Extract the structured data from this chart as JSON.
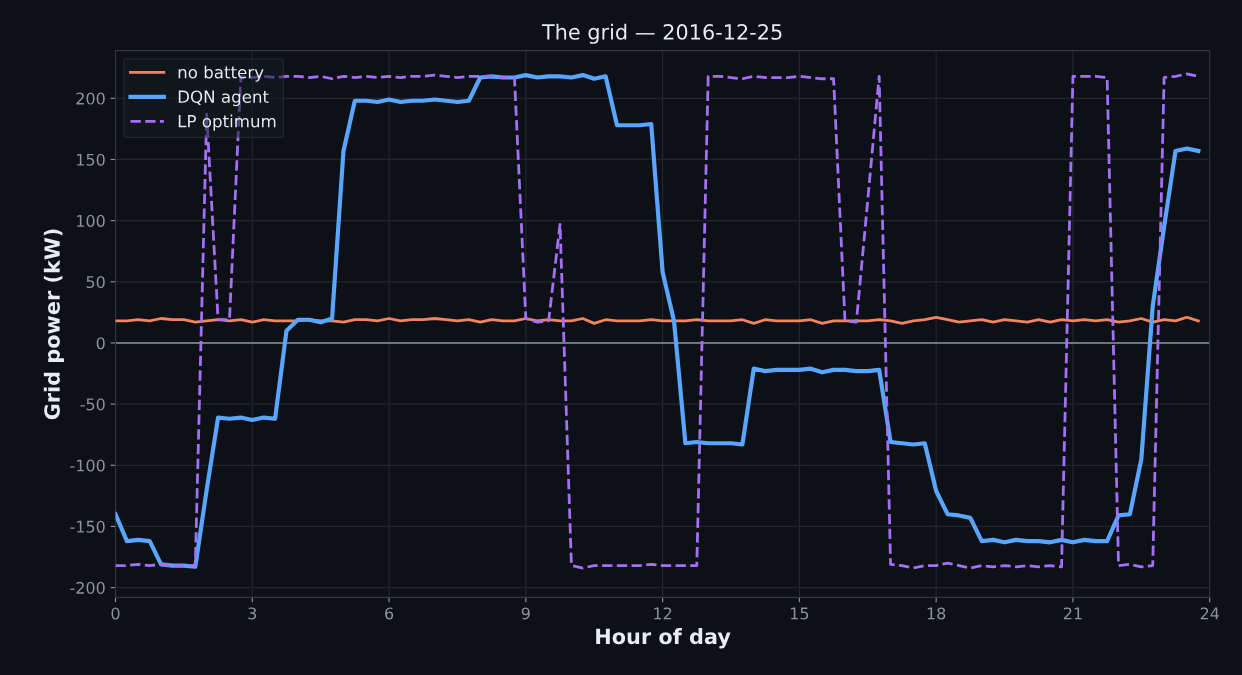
{
  "chart_data": {
    "type": "line",
    "title": "The grid — 2016-12-25",
    "xlabel": "Hour of day",
    "ylabel": "Grid power (kW)",
    "x": [
      0,
      0.25,
      0.5,
      0.75,
      1,
      1.25,
      1.5,
      1.75,
      2,
      2.25,
      2.5,
      2.75,
      3,
      3.25,
      3.5,
      3.75,
      4,
      4.25,
      4.5,
      4.75,
      5,
      5.25,
      5.5,
      5.75,
      6,
      6.25,
      6.5,
      6.75,
      7,
      7.25,
      7.5,
      7.75,
      8,
      8.25,
      8.5,
      8.75,
      9,
      9.25,
      9.5,
      9.75,
      10,
      10.25,
      10.5,
      10.75,
      11,
      11.25,
      11.5,
      11.75,
      12,
      12.25,
      12.5,
      12.75,
      13,
      13.25,
      13.5,
      13.75,
      14,
      14.25,
      14.5,
      14.75,
      15,
      15.25,
      15.5,
      15.75,
      16,
      16.25,
      16.5,
      16.75,
      17,
      17.25,
      17.5,
      17.75,
      18,
      18.25,
      18.5,
      18.75,
      19,
      19.25,
      19.5,
      19.75,
      20,
      20.25,
      20.5,
      20.75,
      21,
      21.25,
      21.5,
      21.75,
      22,
      22.25,
      22.5,
      22.75,
      23,
      23.25,
      23.5,
      23.75
    ],
    "series": [
      {
        "name": "no battery",
        "color": "#f4845f",
        "line_style": "solid",
        "values": [
          18,
          18,
          19,
          18,
          20,
          19,
          19,
          17,
          18,
          19,
          18,
          19,
          17,
          19,
          18,
          18,
          18,
          19,
          18,
          18,
          17,
          19,
          19,
          18,
          20,
          18,
          19,
          19,
          20,
          19,
          18,
          19,
          17,
          19,
          18,
          18,
          20,
          18,
          19,
          18,
          18,
          20,
          16,
          19,
          18,
          18,
          18,
          19,
          18,
          18,
          18,
          19,
          18,
          18,
          18,
          19,
          16,
          19,
          18,
          18,
          18,
          19,
          16,
          18,
          18,
          18,
          18,
          19,
          18,
          16,
          18,
          19,
          21,
          19,
          17,
          18,
          19,
          17,
          19,
          18,
          17,
          19,
          17,
          19,
          18,
          19,
          18,
          19,
          17,
          18,
          20,
          17,
          19,
          18,
          21,
          18
        ]
      },
      {
        "name": "DQN agent",
        "color": "#58a6ff",
        "line_style": "solid",
        "values": [
          -140,
          -162,
          -161,
          -162,
          -181,
          -182,
          -182,
          -183,
          -120,
          -61,
          -62,
          -61,
          -63,
          -61,
          -62,
          10,
          19,
          19,
          17,
          20,
          157,
          198,
          198,
          197,
          199,
          197,
          198,
          198,
          199,
          198,
          197,
          198,
          217,
          218,
          217,
          217,
          219,
          217,
          218,
          218,
          217,
          219,
          216,
          218,
          178,
          178,
          178,
          179,
          58,
          18,
          -82,
          -81,
          -82,
          -82,
          -82,
          -83,
          -21,
          -23,
          -22,
          -22,
          -22,
          -21,
          -24,
          -22,
          -22,
          -23,
          -23,
          -22,
          -81,
          -82,
          -83,
          -82,
          -121,
          -140,
          -141,
          -143,
          -162,
          -161,
          -163,
          -161,
          -162,
          -162,
          -163,
          -161,
          -163,
          -161,
          -162,
          -162,
          -141,
          -140,
          -95,
          30,
          95,
          157,
          159,
          157
        ]
      },
      {
        "name": "LP optimum",
        "color": "#a371f7",
        "line_style": "dashed",
        "values": [
          -182,
          -182,
          -181,
          -182,
          -181,
          -182,
          -182,
          -182,
          187,
          19,
          19,
          218,
          217,
          218,
          217,
          218,
          218,
          217,
          218,
          216,
          218,
          217,
          218,
          217,
          218,
          217,
          218,
          218,
          219,
          218,
          217,
          218,
          218,
          218,
          217,
          217,
          20,
          17,
          18,
          97,
          -182,
          -184,
          -182,
          -182,
          -182,
          -182,
          -182,
          -181,
          -182,
          -182,
          -182,
          -182,
          218,
          218,
          217,
          216,
          218,
          217,
          217,
          217,
          218,
          217,
          216,
          216,
          18,
          17,
          117,
          218,
          -181,
          -182,
          -184,
          -182,
          -182,
          -180,
          -182,
          -184,
          -182,
          -183,
          -182,
          -183,
          -182,
          -183,
          -182,
          -183,
          218,
          218,
          218,
          217,
          -182,
          -181,
          -183,
          -182,
          217,
          218,
          220,
          218
        ]
      }
    ],
    "xlim": [
      0,
      24
    ],
    "xticks": [
      0,
      3,
      6,
      9,
      12,
      15,
      18,
      21,
      24
    ],
    "ylim": [
      -208,
      239
    ],
    "yticks": [
      -200,
      -150,
      -100,
      -50,
      0,
      50,
      100,
      150,
      200
    ],
    "ref_lines": [
      {
        "axis": "y",
        "value": 0,
        "color": "#8b949e"
      }
    ],
    "grid": true,
    "legend": "top left",
    "marker": "none"
  }
}
